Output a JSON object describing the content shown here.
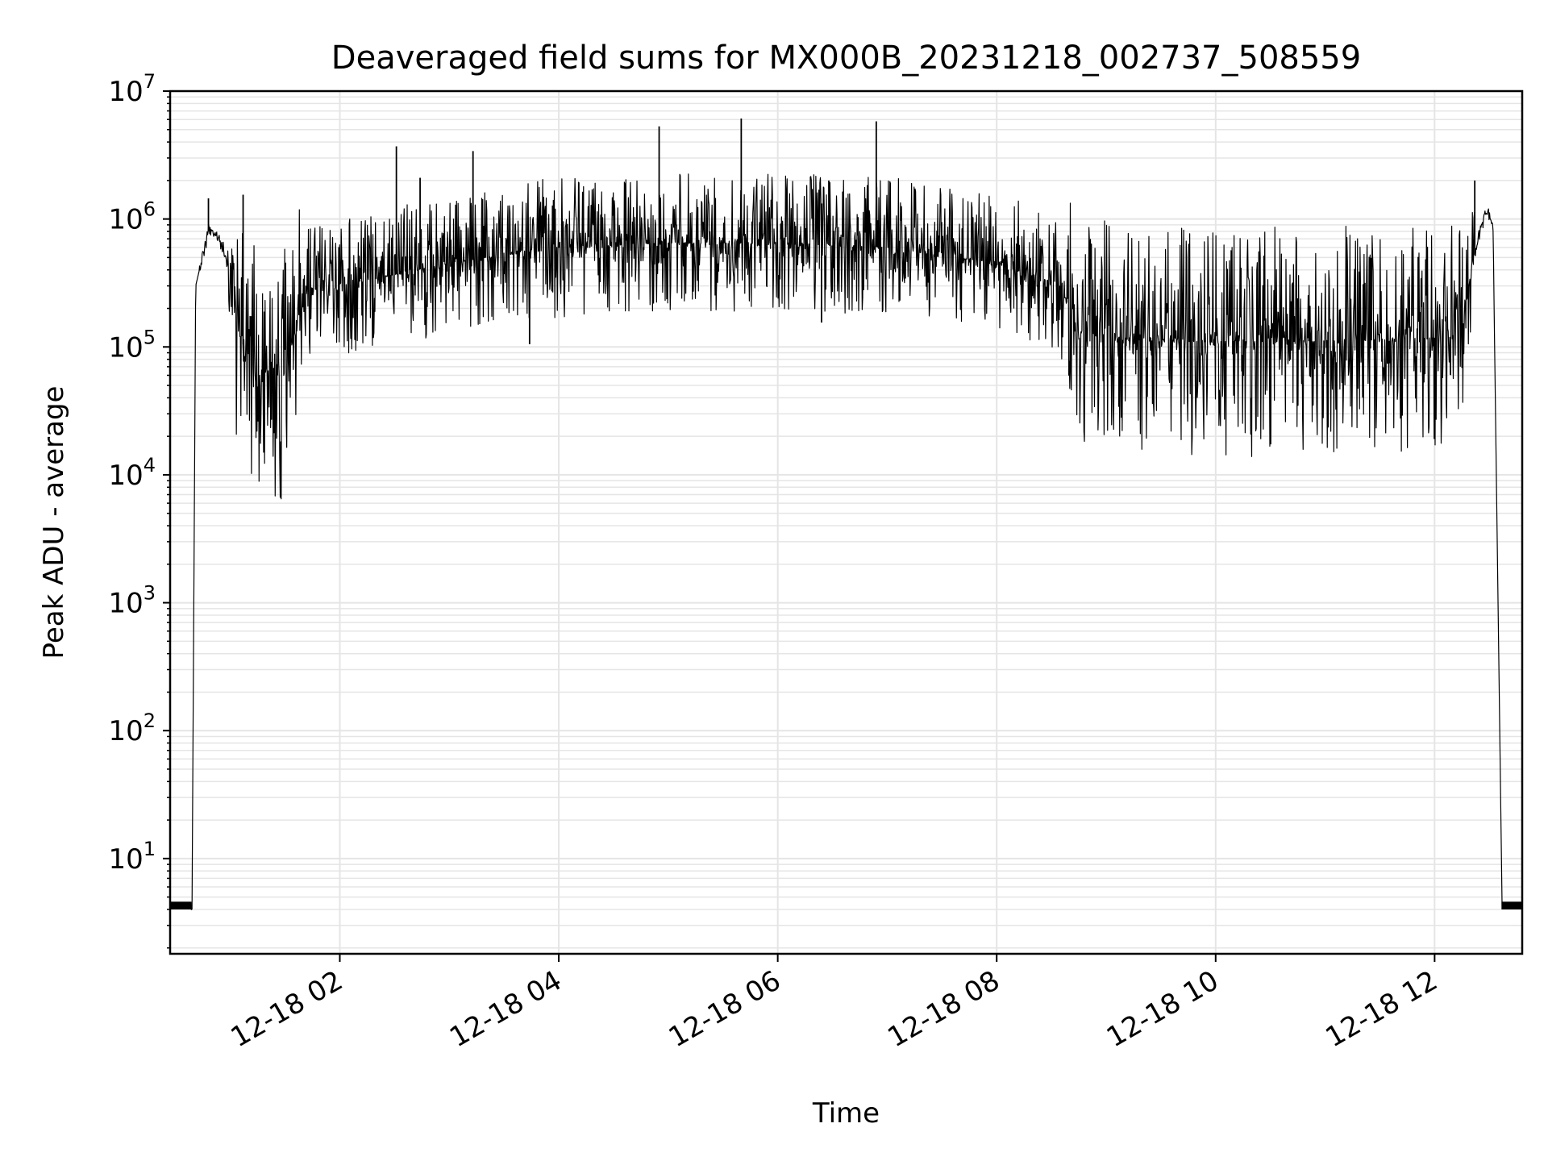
{
  "chart_data": {
    "type": "line",
    "title": "Deaveraged field sums for MX000B_20231218_002737_508559",
    "xlabel": "Time",
    "ylabel": "Peak ADU - average",
    "yscale": "log",
    "ylim": [
      1.8,
      10000000
    ],
    "xlim": [
      "2023-12-18 00:27",
      "2023-12-18 12:48"
    ],
    "x_ticks": [
      {
        "value": "2023-12-18 02:00",
        "label": "12-18 02"
      },
      {
        "value": "2023-12-18 04:00",
        "label": "12-18 04"
      },
      {
        "value": "2023-12-18 06:00",
        "label": "12-18 06"
      },
      {
        "value": "2023-12-18 08:00",
        "label": "12-18 08"
      },
      {
        "value": "2023-12-18 10:00",
        "label": "12-18 10"
      },
      {
        "value": "2023-12-18 12:00",
        "label": "12-18 12"
      }
    ],
    "y_ticks": [
      {
        "value": 10,
        "base": "10",
        "exp": "1"
      },
      {
        "value": 100,
        "base": "10",
        "exp": "2"
      },
      {
        "value": 1000,
        "base": "10",
        "exp": "3"
      },
      {
        "value": 10000,
        "base": "10",
        "exp": "4"
      },
      {
        "value": 100000,
        "base": "10",
        "exp": "5"
      },
      {
        "value": 1000000,
        "base": "10",
        "exp": "6"
      },
      {
        "value": 10000000,
        "base": "10",
        "exp": "7"
      }
    ],
    "grid": true,
    "line_color": "#000000",
    "grid_color": "#e5e5e5",
    "series": [
      {
        "points": [
          {
            "x": "2023-12-18 00:27",
            "y": 4
          },
          {
            "x": "2023-12-18 00:39",
            "y": 4
          },
          {
            "x": "2023-12-18 00:41",
            "y": 300000
          },
          {
            "x": "2023-12-18 00:48",
            "y": 800000
          },
          {
            "x": "2023-12-18 00:54",
            "y": 700000
          },
          {
            "x": "2023-12-18 01:00",
            "y": 400000
          },
          {
            "x": "2023-12-18 01:05",
            "y": 120000
          },
          {
            "x": "2023-12-18 01:15",
            "y": 60000
          },
          {
            "x": "2023-12-18 01:30",
            "y": 60000
          },
          {
            "x": "2023-12-18 01:40",
            "y": 250000
          },
          {
            "x": "2023-12-18 02:00",
            "y": 300000
          },
          {
            "x": "2023-12-18 03:00",
            "y": 450000
          },
          {
            "x": "2023-12-18 04:00",
            "y": 600000
          },
          {
            "x": "2023-12-18 05:00",
            "y": 650000
          },
          {
            "x": "2023-12-18 06:00",
            "y": 650000
          },
          {
            "x": "2023-12-18 07:00",
            "y": 600000
          },
          {
            "x": "2023-12-18 08:00",
            "y": 450000
          },
          {
            "x": "2023-12-18 08:35",
            "y": 300000
          },
          {
            "x": "2023-12-18 08:45",
            "y": 130000
          },
          {
            "x": "2023-12-18 09:30",
            "y": 110000
          },
          {
            "x": "2023-12-18 10:00",
            "y": 110000
          },
          {
            "x": "2023-12-18 11:00",
            "y": 110000
          },
          {
            "x": "2023-12-18 12:15",
            "y": 120000
          },
          {
            "x": "2023-12-18 12:20",
            "y": 400000
          },
          {
            "x": "2023-12-18 12:28",
            "y": 1200000
          },
          {
            "x": "2023-12-18 12:32",
            "y": 900000
          },
          {
            "x": "2023-12-18 12:37",
            "y": 4
          },
          {
            "x": "2023-12-18 12:48",
            "y": 4
          }
        ],
        "spikes": [
          {
            "x": "2023-12-18 00:48",
            "y": 1450000
          },
          {
            "x": "2023-12-18 01:07",
            "y": 1550000
          },
          {
            "x": "2023-12-18 02:31",
            "y": 3700000
          },
          {
            "x": "2023-12-18 02:44",
            "y": 2100000
          },
          {
            "x": "2023-12-18 03:13",
            "y": 3400000
          },
          {
            "x": "2023-12-18 03:44",
            "y": 105000
          },
          {
            "x": "2023-12-18 04:55",
            "y": 5300000
          },
          {
            "x": "2023-12-18 05:40",
            "y": 6100000
          },
          {
            "x": "2023-12-18 06:28",
            "y": 2000000
          },
          {
            "x": "2023-12-18 06:24",
            "y": 155000
          },
          {
            "x": "2023-12-18 06:54",
            "y": 5800000
          },
          {
            "x": "2023-12-18 09:07",
            "y": 34000
          },
          {
            "x": "2023-12-18 12:22",
            "y": 2000000
          }
        ]
      }
    ]
  }
}
